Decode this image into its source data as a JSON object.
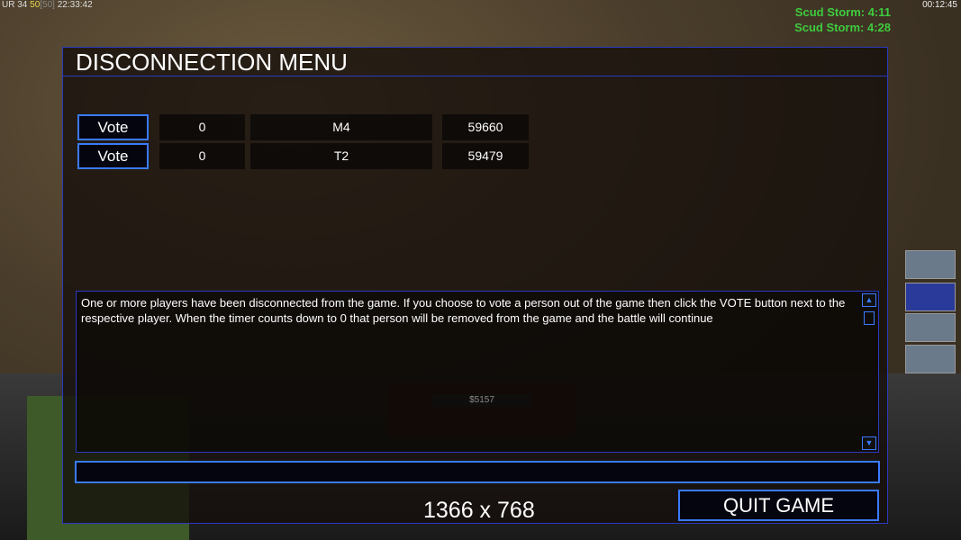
{
  "hud": {
    "status_prefix": "UR",
    "status_a": "34",
    "status_b": "50",
    "status_c": "[50]",
    "time": "22:33:42",
    "clock": "00:12:45",
    "money": "$5157",
    "timers": [
      "Scud Storm: 4:11",
      "Scud Storm: 4:28"
    ]
  },
  "menu": {
    "title": "DISCONNECTION MENU",
    "players": [
      {
        "vote_label": "Vote",
        "votes": "0",
        "name": "M4",
        "timer": "59660"
      },
      {
        "vote_label": "Vote",
        "votes": "0",
        "name": "T2",
        "timer": "59479"
      }
    ],
    "message": "One or more players have been disconnected from the game. If you choose to vote a person out of the game then click the VOTE button next to the respective player. When the timer counts down to 0 that person will be removed from the game and the battle will continue",
    "chat_value": "",
    "resolution": "1366 x 768",
    "quit_label": "QUIT GAME"
  },
  "colors": {
    "accent": "#3a7aff",
    "timer_text": "#3ecb3e"
  }
}
